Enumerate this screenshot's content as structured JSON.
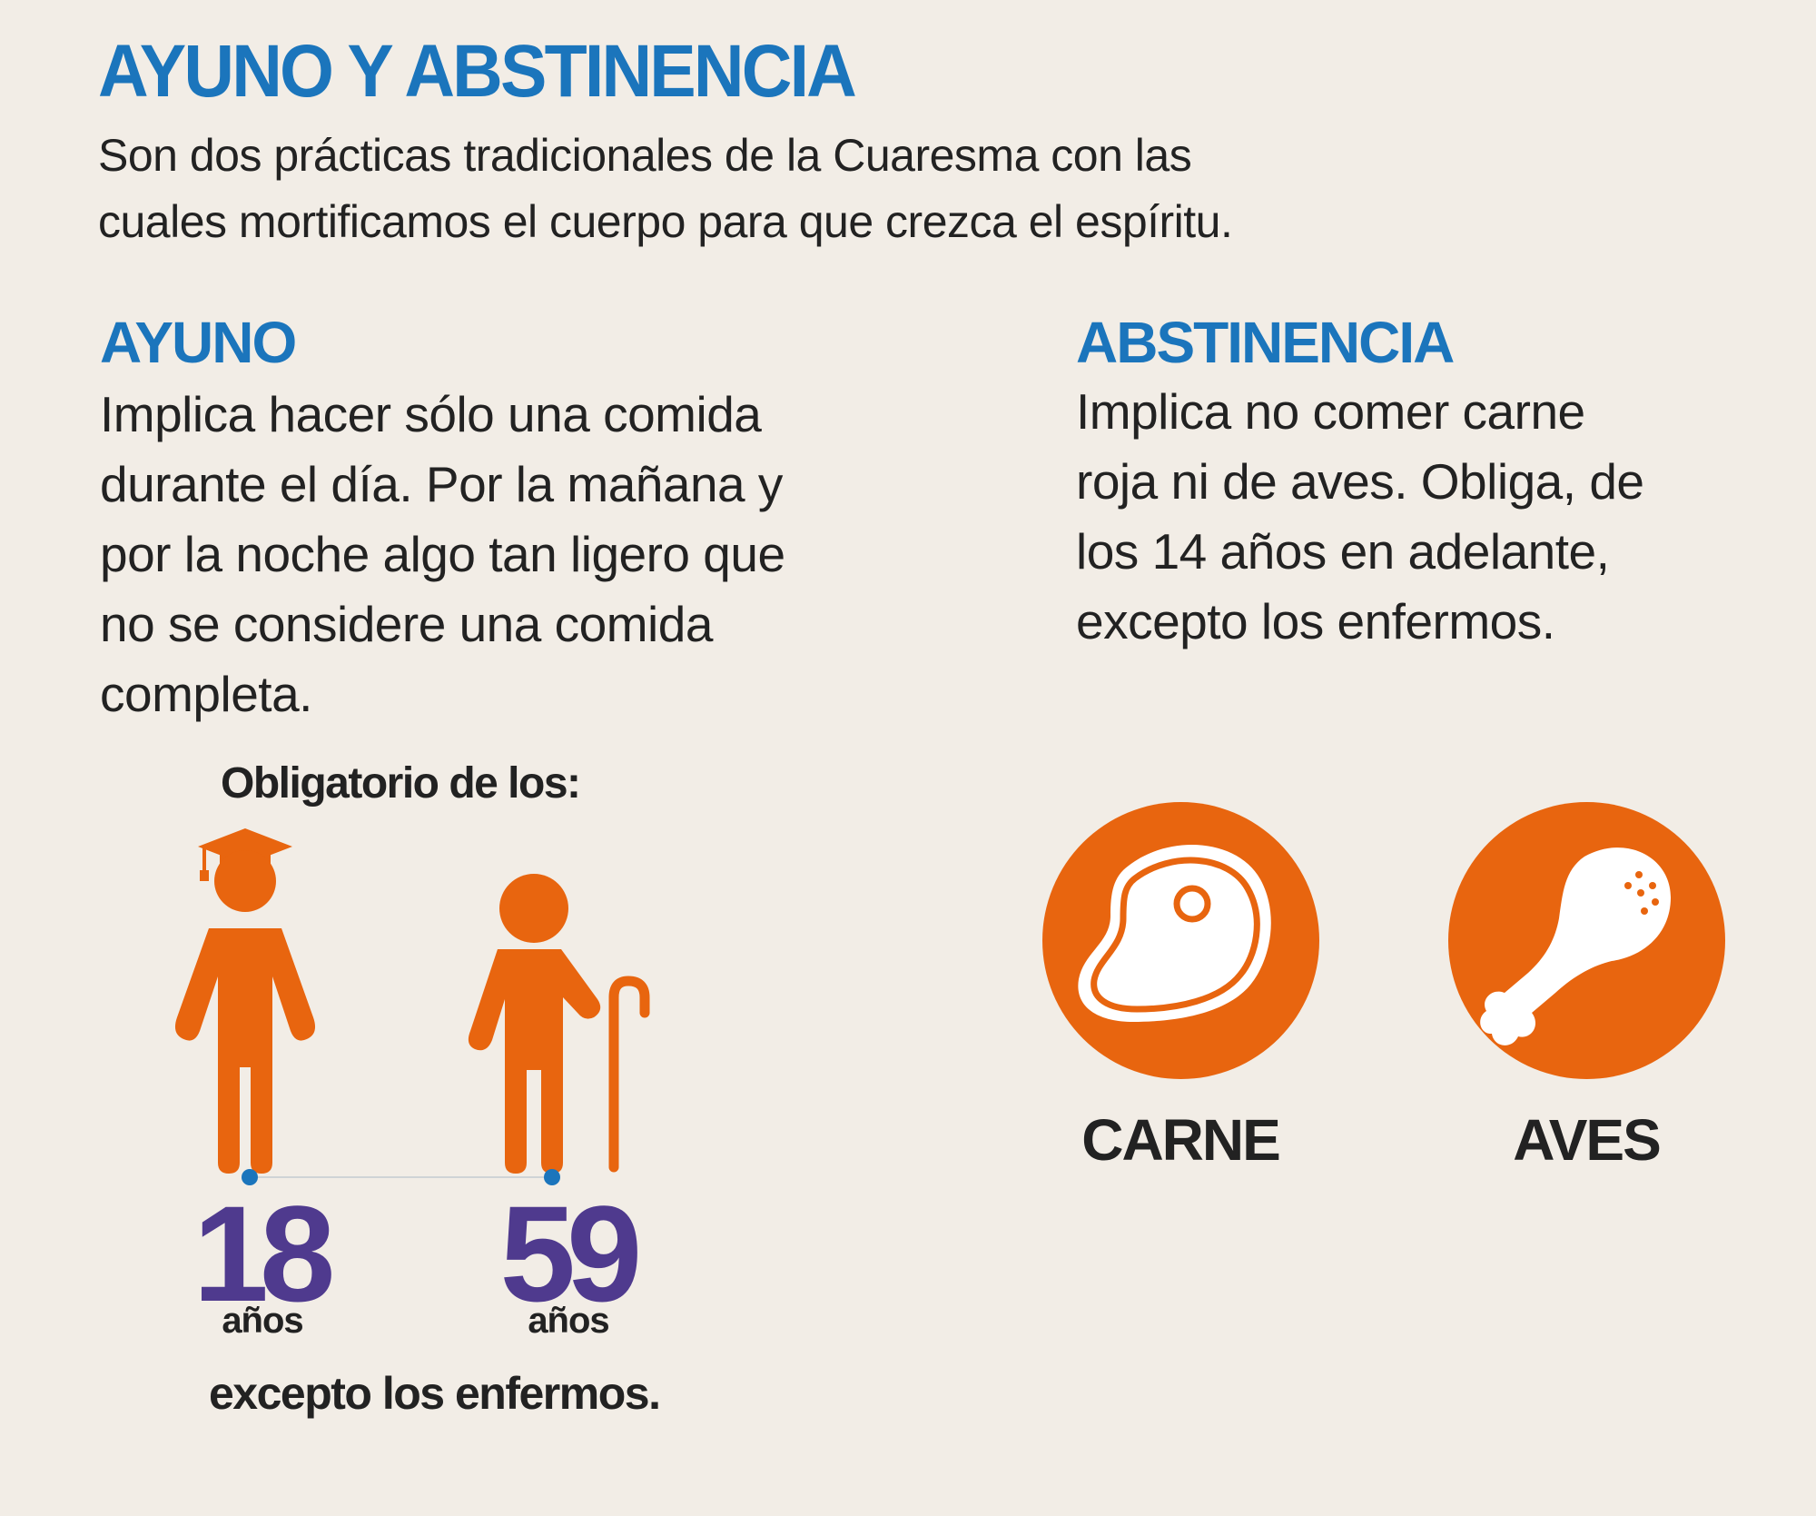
{
  "header": {
    "title": "AYUNO Y ABSTINENCIA",
    "intro_line1": "Son dos prácticas tradicionales de la Cuaresma con las",
    "intro_line2": "cuales mortificamos el cuerpo para que crezca el espíritu."
  },
  "ayuno": {
    "title": "AYUNO",
    "lines": [
      "Implica hacer sólo una comida",
      "durante el día. Por la mañana y",
      "por la noche algo tan ligero que",
      "no se considere una comida",
      "completa."
    ],
    "obligatory_label": "Obligatorio de los:",
    "age_from": "18",
    "age_to": "59",
    "age_unit": "años",
    "exception": "excepto los enfermos."
  },
  "abstinencia": {
    "title": "ABSTINENCIA",
    "lines": [
      "Implica no comer carne",
      "roja ni de aves. Obliga, de",
      "los 14 años en adelante,",
      "excepto los enfermos."
    ],
    "items": [
      {
        "label": "CARNE",
        "icon": "steak-icon"
      },
      {
        "label": "AVES",
        "icon": "chicken-leg-icon"
      }
    ]
  },
  "colors": {
    "background": "#f2ede6",
    "title_blue": "#1b75bc",
    "icon_orange": "#e8650f",
    "age_purple": "#4f3a8e",
    "dot_blue": "#1b75bc"
  }
}
